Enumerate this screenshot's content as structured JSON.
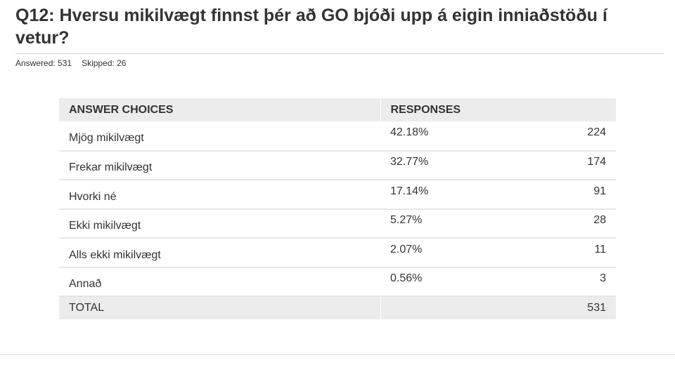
{
  "question": {
    "title": "Q12: Hversu mikilvægt finnst þér að GO bjóði upp á eigin inniaðstöðu í vetur?",
    "answered": "Answered: 531",
    "skipped": "Skipped: 26"
  },
  "table": {
    "headers": {
      "choices": "ANSWER CHOICES",
      "responses": "RESPONSES"
    },
    "rows": [
      {
        "choice": "Mjög mikilvægt",
        "percent": "42.18%",
        "count": "224"
      },
      {
        "choice": "Frekar mikilvægt",
        "percent": "32.77%",
        "count": "174"
      },
      {
        "choice": "Hvorki né",
        "percent": "17.14%",
        "count": "91"
      },
      {
        "choice": "Ekki mikilvægt",
        "percent": "5.27%",
        "count": "28"
      },
      {
        "choice": "Alls ekki mikilvægt",
        "percent": "2.07%",
        "count": "11"
      },
      {
        "choice": "Annað",
        "percent": "0.56%",
        "count": "3"
      }
    ],
    "total": {
      "label": "TOTAL",
      "count": "531"
    }
  },
  "colors": {
    "text": "#333333",
    "header_background": "#ececec",
    "row_divider": "#e6e6e6",
    "rule": "#d9d9d9"
  }
}
